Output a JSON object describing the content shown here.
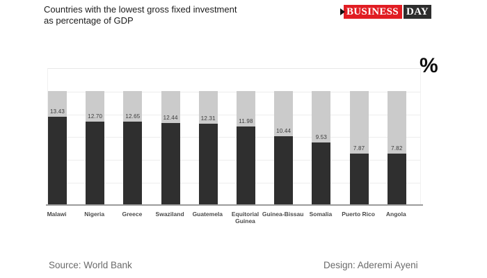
{
  "header": {
    "title_line1": "Countries with the lowest gross fixed investment",
    "title_line2": "as percentage of GDP",
    "logo": {
      "part1": "BUSINESS",
      "part2": "DAY",
      "arrow_icon": "right-arrow",
      "red_color": "#e11d23",
      "dark_color": "#2d2d2d"
    }
  },
  "chart": {
    "unit_label": "%"
  },
  "chart_data": {
    "type": "bar",
    "title": "Countries with the lowest gross fixed investment as percentage of GDP",
    "categories": [
      "Malawi",
      "Nigeria",
      "Greece",
      "Swaziland",
      "Guatemela",
      "Equitorial Guinea",
      "Guinea-Bissau",
      "Somalia",
      "Puerto Rico",
      "Angola"
    ],
    "values": [
      13.43,
      12.7,
      12.65,
      12.44,
      12.31,
      11.98,
      10.44,
      9.53,
      7.87,
      7.82
    ],
    "value_labels": [
      "13.43",
      "12.70",
      "12.65",
      "12.44",
      "12.31",
      "11.98",
      "10.44",
      "9.53",
      "7.87",
      "7.82"
    ],
    "xlabel": "",
    "ylabel": "%",
    "ylim": [
      0,
      20.6
    ],
    "grid": true,
    "legend": false,
    "bar_color": "#2f2f2f",
    "background_bar_color": "#cbcbcb",
    "background_bar_value": 17.3,
    "axis_color": "#9b9b9b"
  },
  "footer": {
    "source": "Source: World Bank",
    "design": "Design: Aderemi Ayeni"
  }
}
